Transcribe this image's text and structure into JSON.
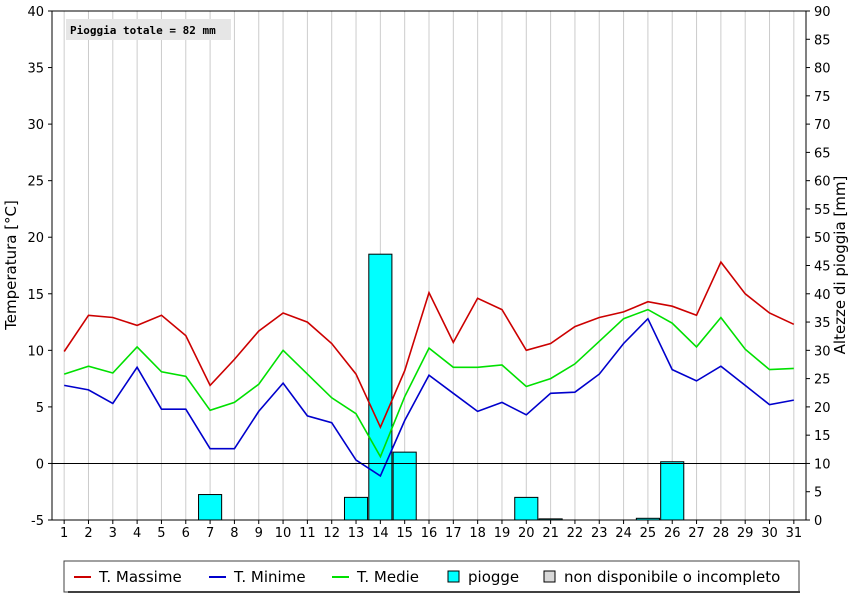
{
  "chart_data": {
    "type": "line",
    "annotation": "Pioggia totale = 82 mm",
    "x": [
      1,
      2,
      3,
      4,
      5,
      6,
      7,
      8,
      9,
      10,
      11,
      12,
      13,
      14,
      15,
      16,
      17,
      18,
      19,
      20,
      21,
      22,
      23,
      24,
      25,
      26,
      27,
      28,
      29,
      30,
      31
    ],
    "xlabels": [
      "1",
      "2",
      "3",
      "4",
      "5",
      "6",
      "7",
      "8",
      "9",
      "10",
      "11",
      "12",
      "13",
      "14",
      "15",
      "16",
      "17",
      "18",
      "19",
      "20",
      "21",
      "22",
      "23",
      "24",
      "25",
      "26",
      "27",
      "28",
      "29",
      "30",
      "31"
    ],
    "ylabel_left": "Temperatura [°C]",
    "ylabel_right": "Altezze di pioggia [mm]",
    "ylim_left": [
      -5,
      40
    ],
    "ylim_right": [
      0,
      90
    ],
    "yticks_left": [
      -5,
      0,
      5,
      10,
      15,
      20,
      25,
      30,
      35,
      40
    ],
    "yticks_right": [
      0,
      5,
      10,
      15,
      20,
      25,
      30,
      35,
      40,
      45,
      50,
      55,
      60,
      65,
      70,
      75,
      80,
      85,
      90
    ],
    "grid": true,
    "series": [
      {
        "name": "T. Massime",
        "color": "#cc0000",
        "values": [
          9.9,
          13.1,
          12.9,
          12.2,
          13.1,
          11.3,
          6.9,
          9.2,
          11.7,
          13.3,
          12.5,
          10.6,
          7.9,
          3.2,
          8.2,
          15.1,
          10.7,
          14.6,
          13.6,
          10.0,
          10.6,
          12.1,
          12.9,
          13.4,
          14.3,
          13.9,
          13.1,
          17.8,
          15.0,
          13.3,
          12.3
        ]
      },
      {
        "name": "T. Minime",
        "color": "#0000cc",
        "values": [
          6.9,
          6.5,
          5.3,
          8.5,
          4.8,
          4.8,
          1.3,
          1.3,
          4.6,
          7.1,
          4.2,
          3.6,
          0.3,
          -1.1,
          3.8,
          7.8,
          6.2,
          4.6,
          5.4,
          4.3,
          6.2,
          6.3,
          7.9,
          10.6,
          12.8,
          8.3,
          7.3,
          8.6,
          6.9,
          5.2,
          5.6
        ]
      },
      {
        "name": "T. Medie",
        "color": "#00e000",
        "values": [
          7.9,
          8.6,
          8.0,
          10.3,
          8.1,
          7.7,
          4.7,
          5.4,
          7.0,
          10.0,
          7.9,
          5.8,
          4.4,
          0.6,
          5.9,
          10.2,
          8.5,
          8.5,
          8.7,
          6.8,
          7.5,
          8.8,
          10.8,
          12.8,
          13.6,
          12.4,
          10.3,
          12.9,
          10.1,
          8.3,
          8.4
        ]
      }
    ],
    "rain": {
      "name": "piogge",
      "color": "#00ffff",
      "values": [
        0,
        0,
        0,
        0,
        0,
        0,
        4.5,
        0,
        0,
        0,
        0,
        0,
        4.0,
        47.0,
        12.0,
        0,
        0,
        0,
        0,
        4.0,
        0.2,
        0,
        0,
        0,
        0.3,
        10.3,
        0,
        0,
        0,
        0,
        0
      ]
    },
    "legend": {
      "placement": "bottom",
      "items": [
        {
          "label": "T. Massime",
          "kind": "line",
          "color": "#cc0000"
        },
        {
          "label": "T. Minime",
          "kind": "line",
          "color": "#0000cc"
        },
        {
          "label": "T. Medie",
          "kind": "line",
          "color": "#00e000"
        },
        {
          "label": "piogge",
          "kind": "box",
          "color": "#00ffff"
        },
        {
          "label": "non disponibile o incompleto",
          "kind": "box",
          "color": "#d8d8d8"
        }
      ]
    }
  }
}
